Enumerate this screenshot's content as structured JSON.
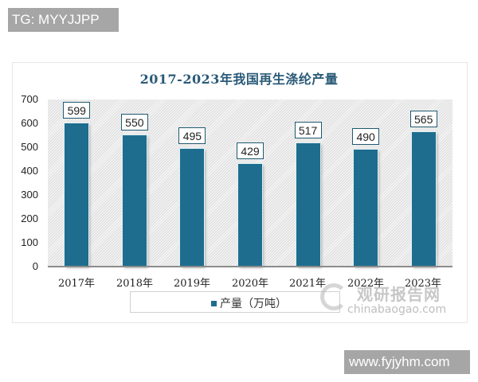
{
  "overlay": {
    "tg_label": "TG: MYYJJPP",
    "site_label": "www.fyjyhm.com"
  },
  "watermark": {
    "cn": "观研报告网",
    "en": "chinabaogao.com"
  },
  "chart_data": {
    "type": "bar",
    "title": "2017-2023年我国再生涤纶产量",
    "categories": [
      "2017年",
      "2018年",
      "2019年",
      "2020年",
      "2021年",
      "2022年",
      "2023年"
    ],
    "series": [
      {
        "name": "产量（万吨）",
        "values": [
          599,
          550,
          495,
          429,
          517,
          490,
          565
        ],
        "color": "#1e6d8e"
      }
    ],
    "values": [
      599,
      550,
      495,
      429,
      517,
      490,
      565
    ],
    "value_labels": [
      "599",
      "550",
      "495",
      "429",
      "517",
      "490",
      "565"
    ],
    "xlabel": "",
    "ylabel": "",
    "ylim": [
      0,
      700
    ],
    "yticks": [
      "700",
      "600",
      "500",
      "400",
      "300",
      "200",
      "100",
      "0"
    ],
    "grid": false,
    "legend_position": "bottom",
    "legend": [
      "产量（万吨）"
    ]
  }
}
